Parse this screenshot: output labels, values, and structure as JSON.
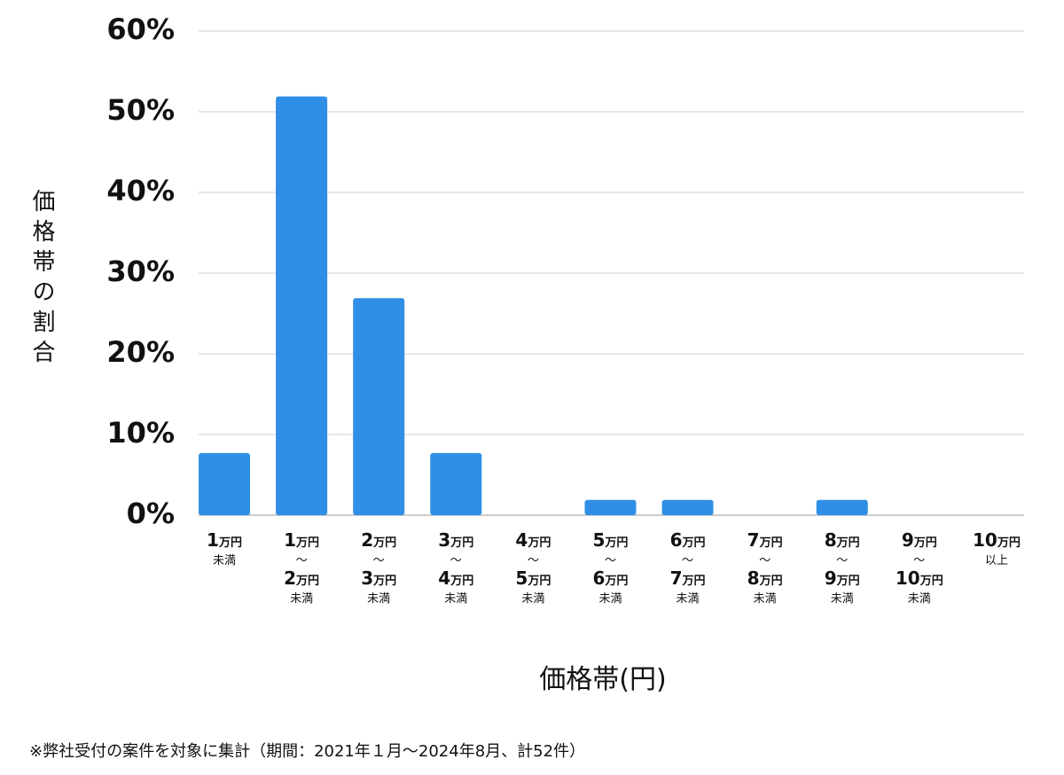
{
  "chart_data": {
    "type": "bar",
    "y_label": "価格帯の割合",
    "x_label": "価格帯(円)",
    "note": "※弊社受付の案件を対象に集計（期間：2021年１月〜2024年8月、計52件）",
    "categories": [
      "1万円\n未満",
      "1万円\n〜\n2万円\n未満",
      "2万円\n〜\n3万円\n未満",
      "3万円\n〜\n4万円\n未満",
      "4万円\n〜\n5万円\n未満",
      "5万円\n〜\n6万円\n未満",
      "6万円\n〜\n7万円\n未満",
      "7万円\n〜\n8万円\n未満",
      "8万円\n〜\n9万円\n未満",
      "9万円\n〜\n10万円\n未満",
      "10万円\n以上"
    ],
    "values": [
      7.7,
      51.9,
      26.9,
      7.7,
      0,
      1.9,
      1.9,
      0,
      1.9,
      0,
      0
    ],
    "color": "#2f8fe6",
    "ylim": [
      0,
      60
    ],
    "yticks": [
      {
        "value": 0,
        "label": "0%"
      },
      {
        "value": 10,
        "label": "10%"
      },
      {
        "value": 20,
        "label": "20%"
      },
      {
        "value": 30,
        "label": "30%"
      },
      {
        "value": 40,
        "label": "40%"
      },
      {
        "value": 50,
        "label": "50%"
      },
      {
        "value": 60,
        "label": "60%"
      }
    ],
    "grid": true
  }
}
